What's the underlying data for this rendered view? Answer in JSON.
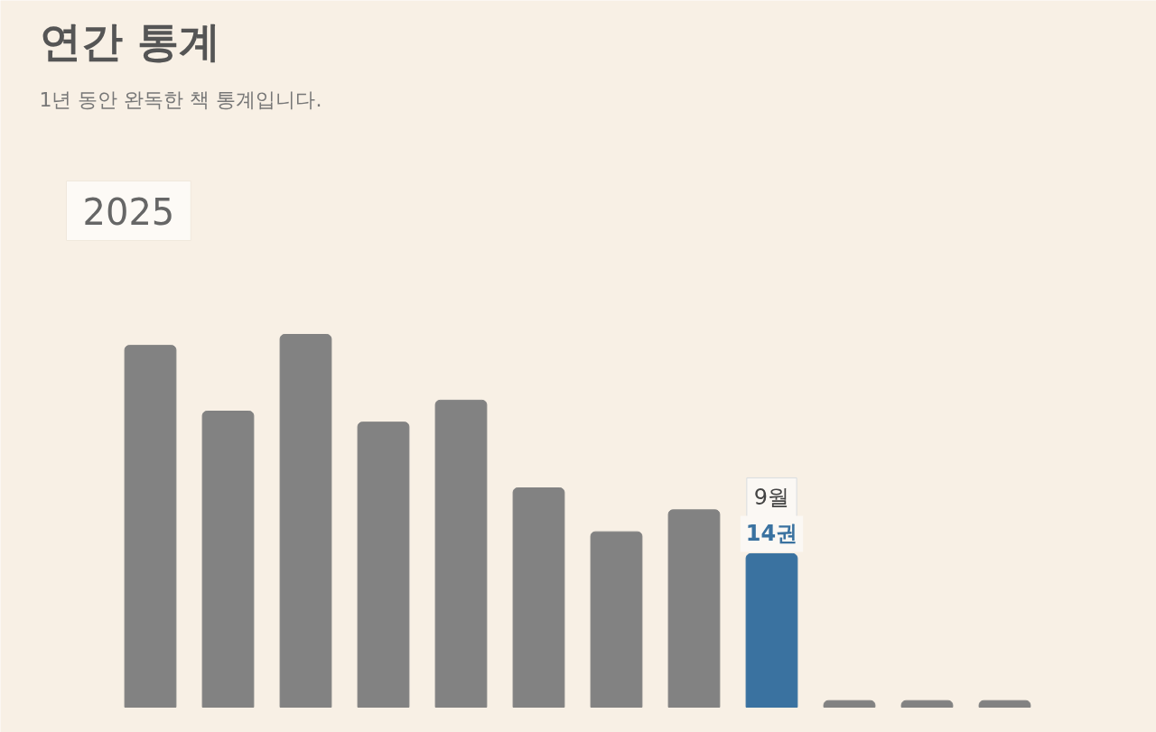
{
  "chart_data": {
    "type": "bar",
    "title": "연간 통계",
    "subtitle": "1년 동안 완독한 책 통계입니다.",
    "categories": [
      null,
      null,
      null,
      null,
      null,
      null,
      null,
      null,
      null,
      null,
      null,
      null
    ],
    "values": [
      33,
      27,
      34,
      26,
      28,
      20,
      16,
      18,
      14,
      0.6,
      0.6,
      0.6
    ],
    "colors": [
      "#828282",
      "#828282",
      "#828282",
      "#828282",
      "#828282",
      "#828282",
      "#828282",
      "#828282",
      "#3a72a0",
      "#828282",
      "#828282",
      "#828282"
    ],
    "value_labels": [
      null,
      null,
      null,
      null,
      null,
      null,
      null,
      null,
      "14권",
      null,
      null,
      null
    ],
    "annotations": [
      "9월",
      "2025"
    ],
    "tick_labels": false
  }
}
